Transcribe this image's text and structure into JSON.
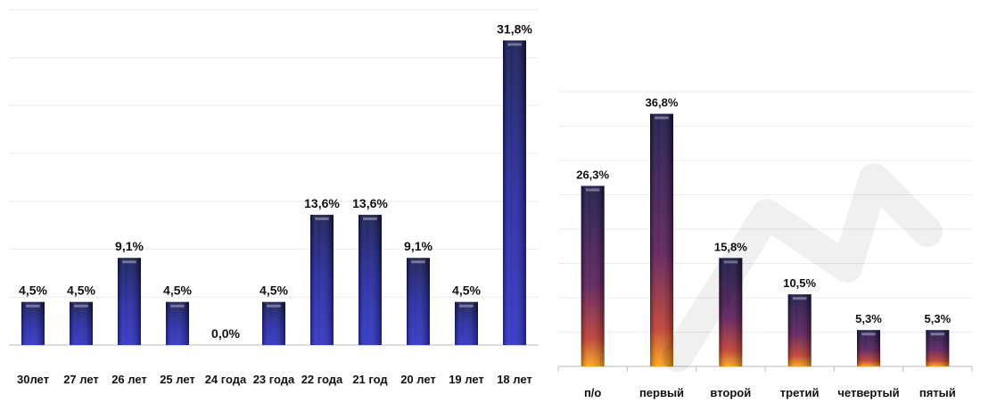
{
  "chart_data": [
    {
      "type": "bar",
      "categories": [
        "30лет",
        "27 лет",
        "26 лет",
        "25 лет",
        "24 года",
        "23 года",
        "22 года",
        "21 год",
        "20 лет",
        "19 лет",
        "18 лет"
      ],
      "values": [
        4.5,
        4.5,
        9.1,
        4.5,
        0.0,
        4.5,
        13.6,
        13.6,
        9.1,
        4.5,
        31.8
      ],
      "data_labels": [
        "4,5%",
        "4,5%",
        "9,1%",
        "4,5%",
        "0,0%",
        "4,5%",
        "13,6%",
        "13,6%",
        "9,1%",
        "4,5%",
        "31,8%"
      ],
      "ylim": [
        0,
        35
      ],
      "grid": true,
      "bar_gradient": [
        "#0f1550",
        "#2a2ec8"
      ]
    },
    {
      "type": "bar",
      "categories": [
        "п/о",
        "первый",
        "второй",
        "третий",
        "четвертый",
        "пятый"
      ],
      "values": [
        26.3,
        36.8,
        15.8,
        10.5,
        5.3,
        5.3
      ],
      "data_labels": [
        "26,3%",
        "36,8%",
        "15,8%",
        "10,5%",
        "5,3%",
        "5,3%"
      ],
      "ylim": [
        0,
        40
      ],
      "grid": true,
      "bar_gradient": [
        "#141245",
        "#6a1a5a",
        "#ff9a10"
      ]
    }
  ]
}
